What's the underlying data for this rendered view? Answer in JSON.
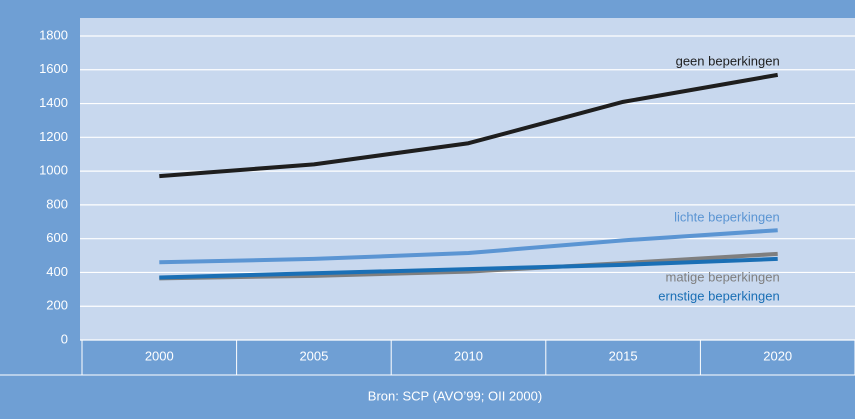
{
  "chart_data": {
    "type": "line",
    "categories": [
      "2000",
      "2005",
      "2010",
      "2015",
      "2020"
    ],
    "series": [
      {
        "name": "geen beperkingen",
        "color": "#1e1e1e",
        "values": [
          970,
          1040,
          1165,
          1410,
          1570
        ]
      },
      {
        "name": "lichte beperkingen",
        "color": "#5b95d3",
        "values": [
          460,
          480,
          515,
          590,
          650
        ]
      },
      {
        "name": "matige beperkingen",
        "color": "#7f7f7f",
        "values": [
          365,
          380,
          405,
          455,
          510
        ]
      },
      {
        "name": "ernstige beperkingen",
        "color": "#1a6fb5",
        "values": [
          370,
          395,
          420,
          445,
          480
        ]
      }
    ],
    "ylim": [
      0,
      1800
    ],
    "yticks": [
      0,
      200,
      400,
      600,
      800,
      1000,
      1200,
      1400,
      1600,
      1800
    ],
    "grid": true,
    "source": "Bron: SCP (AVO’99; OII 2000)"
  }
}
